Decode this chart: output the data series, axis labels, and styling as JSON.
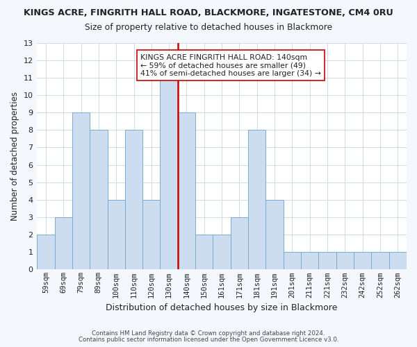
{
  "title": "KINGS ACRE, FINGRITH HALL ROAD, BLACKMORE, INGATESTONE, CM4 0RU",
  "subtitle": "Size of property relative to detached houses in Blackmore",
  "xlabel": "Distribution of detached houses by size in Blackmore",
  "ylabel": "Number of detached properties",
  "footer_line1": "Contains HM Land Registry data © Crown copyright and database right 2024.",
  "footer_line2": "Contains public sector information licensed under the Open Government Licence v3.0.",
  "bar_labels": [
    "59sqm",
    "69sqm",
    "79sqm",
    "89sqm",
    "100sqm",
    "110sqm",
    "120sqm",
    "130sqm",
    "140sqm",
    "150sqm",
    "161sqm",
    "171sqm",
    "181sqm",
    "191sqm",
    "201sqm",
    "211sqm",
    "221sqm",
    "232sqm",
    "242sqm",
    "252sqm",
    "262sqm"
  ],
  "bar_values": [
    2,
    3,
    9,
    8,
    4,
    8,
    4,
    11,
    9,
    2,
    2,
    3,
    8,
    4,
    1,
    1,
    1,
    1,
    1,
    1,
    1
  ],
  "bar_color": "#ccddf0",
  "bar_edgecolor": "#7aaacf",
  "highlight_index": 7,
  "highlight_line_color": "#cc0000",
  "ylim": [
    0,
    13
  ],
  "yticks": [
    0,
    1,
    2,
    3,
    4,
    5,
    6,
    7,
    8,
    9,
    10,
    11,
    12,
    13
  ],
  "annotation_title": "KINGS ACRE FINGRITH HALL ROAD: 140sqm",
  "annotation_line1": "← 59% of detached houses are smaller (49)",
  "annotation_line2": "41% of semi-detached houses are larger (34) →",
  "annotation_box_color": "#ffffff",
  "annotation_box_edgecolor": "#cc0000",
  "bg_color": "#f4f8fc",
  "plot_bg_color": "#ffffff",
  "grid_color": "#c8d4e0"
}
